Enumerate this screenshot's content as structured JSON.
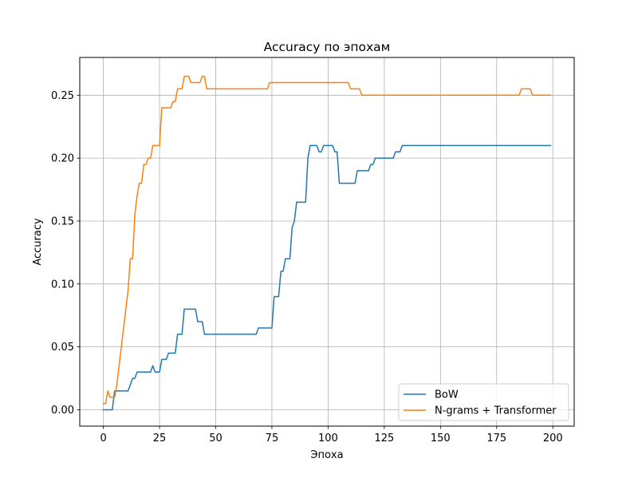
{
  "chart_data": {
    "type": "line",
    "title": "Accuracy по эпохам",
    "xlabel": "Эпоха",
    "ylabel": "Accuracy",
    "xlim": [
      -10.5,
      209.5
    ],
    "ylim": [
      -0.013,
      0.28
    ],
    "x_ticks": [
      0,
      25,
      50,
      75,
      100,
      125,
      150,
      175,
      200
    ],
    "x_tick_labels": [
      "0",
      "25",
      "50",
      "75",
      "100",
      "125",
      "150",
      "175",
      "200"
    ],
    "y_ticks": [
      0.0,
      0.05,
      0.1,
      0.15,
      0.2,
      0.25
    ],
    "y_tick_labels": [
      "0.00",
      "0.05",
      "0.10",
      "0.15",
      "0.20",
      "0.25"
    ],
    "grid": true,
    "legend_position": "lower right",
    "series": [
      {
        "name": "BoW",
        "color": "#1f77b4",
        "points": [
          [
            0,
            0.0
          ],
          [
            4,
            0.0
          ],
          [
            5,
            0.015
          ],
          [
            11,
            0.015
          ],
          [
            12,
            0.02
          ],
          [
            13,
            0.025
          ],
          [
            14,
            0.025
          ],
          [
            15,
            0.03
          ],
          [
            21,
            0.03
          ],
          [
            22,
            0.035
          ],
          [
            23,
            0.03
          ],
          [
            25,
            0.03
          ],
          [
            26,
            0.04
          ],
          [
            28,
            0.04
          ],
          [
            29,
            0.045
          ],
          [
            32,
            0.045
          ],
          [
            33,
            0.06
          ],
          [
            35,
            0.06
          ],
          [
            36,
            0.08
          ],
          [
            41,
            0.08
          ],
          [
            42,
            0.07
          ],
          [
            44,
            0.07
          ],
          [
            45,
            0.06
          ],
          [
            68,
            0.06
          ],
          [
            69,
            0.065
          ],
          [
            75,
            0.065
          ],
          [
            76,
            0.09
          ],
          [
            78,
            0.09
          ],
          [
            79,
            0.11
          ],
          [
            80,
            0.11
          ],
          [
            81,
            0.12
          ],
          [
            83,
            0.12
          ],
          [
            84,
            0.145
          ],
          [
            85,
            0.15
          ],
          [
            86,
            0.165
          ],
          [
            90,
            0.165
          ],
          [
            91,
            0.2
          ],
          [
            92,
            0.21
          ],
          [
            95,
            0.21
          ],
          [
            96,
            0.205
          ],
          [
            97,
            0.205
          ],
          [
            98,
            0.21
          ],
          [
            102,
            0.21
          ],
          [
            103,
            0.205
          ],
          [
            104,
            0.205
          ],
          [
            105,
            0.18
          ],
          [
            112,
            0.18
          ],
          [
            113,
            0.19
          ],
          [
            118,
            0.19
          ],
          [
            119,
            0.195
          ],
          [
            120,
            0.195
          ],
          [
            121,
            0.2
          ],
          [
            129,
            0.2
          ],
          [
            130,
            0.205
          ],
          [
            132,
            0.205
          ],
          [
            133,
            0.21
          ],
          [
            199,
            0.21
          ]
        ]
      },
      {
        "name": "N-grams + Transformer",
        "color": "#ff7f0e",
        "points": [
          [
            0,
            0.005
          ],
          [
            1,
            0.005
          ],
          [
            2,
            0.015
          ],
          [
            3,
            0.01
          ],
          [
            5,
            0.01
          ],
          [
            6,
            0.02
          ],
          [
            7,
            0.035
          ],
          [
            8,
            0.05
          ],
          [
            9,
            0.065
          ],
          [
            10,
            0.08
          ],
          [
            11,
            0.095
          ],
          [
            12,
            0.12
          ],
          [
            13,
            0.12
          ],
          [
            14,
            0.155
          ],
          [
            15,
            0.17
          ],
          [
            16,
            0.18
          ],
          [
            17,
            0.18
          ],
          [
            18,
            0.195
          ],
          [
            19,
            0.195
          ],
          [
            20,
            0.2
          ],
          [
            21,
            0.2
          ],
          [
            22,
            0.21
          ],
          [
            25,
            0.21
          ],
          [
            26,
            0.24
          ],
          [
            30,
            0.24
          ],
          [
            31,
            0.245
          ],
          [
            32,
            0.245
          ],
          [
            33,
            0.255
          ],
          [
            35,
            0.255
          ],
          [
            36,
            0.265
          ],
          [
            38,
            0.265
          ],
          [
            39,
            0.26
          ],
          [
            43,
            0.26
          ],
          [
            44,
            0.265
          ],
          [
            45,
            0.265
          ],
          [
            46,
            0.255
          ],
          [
            73,
            0.255
          ],
          [
            74,
            0.26
          ],
          [
            109,
            0.26
          ],
          [
            110,
            0.255
          ],
          [
            114,
            0.255
          ],
          [
            115,
            0.25
          ],
          [
            185,
            0.25
          ],
          [
            186,
            0.255
          ],
          [
            190,
            0.255
          ],
          [
            191,
            0.25
          ],
          [
            199,
            0.25
          ]
        ]
      }
    ]
  }
}
